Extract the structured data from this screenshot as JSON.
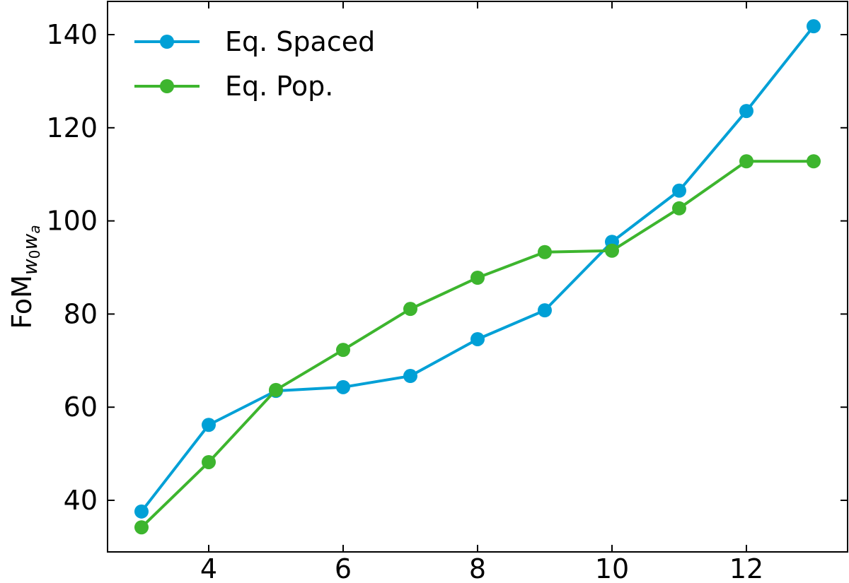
{
  "chart_data": {
    "type": "line",
    "title": "",
    "xlabel": "",
    "ylabel": "FoM",
    "ylabel_subscript": [
      "w",
      "0",
      "w",
      "a"
    ],
    "x": [
      3,
      4,
      5,
      6,
      7,
      8,
      9,
      10,
      11,
      12,
      13
    ],
    "xlim": [
      2.5,
      13.4
    ],
    "ylim": [
      29.5,
      147
    ],
    "xticks": [
      4,
      6,
      8,
      10,
      12
    ],
    "yticks": [
      40,
      60,
      80,
      100,
      120,
      140
    ],
    "grid": false,
    "legend_position": "upper left",
    "series": [
      {
        "name": "Eq. Spaced",
        "color": "#00a0d6",
        "marker": "circle",
        "values": [
          37.6,
          56.2,
          63.5,
          64.3,
          66.7,
          74.6,
          80.8,
          95.5,
          106.5,
          123.6,
          141.8
        ]
      },
      {
        "name": "Eq. Pop.",
        "color": "#3db52e",
        "marker": "circle",
        "values": [
          34.2,
          48.2,
          63.7,
          72.3,
          81.1,
          87.8,
          93.3,
          93.6,
          102.7,
          112.8,
          112.8
        ]
      }
    ]
  }
}
